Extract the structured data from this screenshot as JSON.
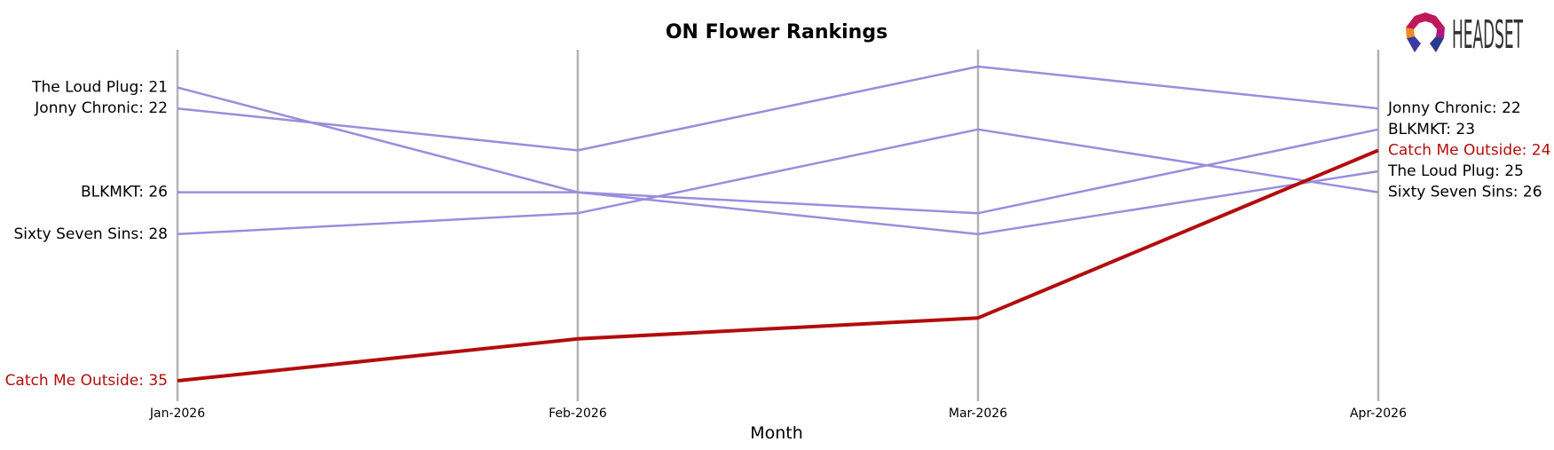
{
  "brand": {
    "name": "HEADSET",
    "logo_icon": "headset-logo-icon"
  },
  "colors": {
    "highlight": "#b30c0c",
    "other": "#9b8ddd",
    "vline": "#b3b3b3"
  },
  "chart_data": {
    "type": "line",
    "title": "ON Flower Rankings",
    "xlabel": "Month",
    "ylabel": "",
    "categories": [
      "Jan-2026",
      "Feb-2026",
      "Mar-2026",
      "Apr-2026"
    ],
    "y_inverted": true,
    "ylim": [
      20,
      35
    ],
    "grid": false,
    "series": [
      {
        "name": "The Loud Plug",
        "values": [
          21,
          26,
          28,
          25
        ],
        "highlight": false,
        "left_label": "The Loud Plug: 21",
        "right_label": "The Loud Plug: 25"
      },
      {
        "name": "Jonny Chronic",
        "values": [
          22,
          24,
          20,
          22
        ],
        "highlight": false,
        "left_label": "Jonny Chronic: 22",
        "right_label": "Jonny Chronic: 22"
      },
      {
        "name": "BLKMKT",
        "values": [
          26,
          26,
          27,
          23
        ],
        "highlight": false,
        "left_label": "BLKMKT: 26",
        "right_label": "BLKMKT: 23"
      },
      {
        "name": "Sixty Seven Sins",
        "values": [
          28,
          27,
          23,
          26
        ],
        "highlight": false,
        "left_label": "Sixty Seven Sins: 28",
        "right_label": "Sixty Seven Sins: 26"
      },
      {
        "name": "Catch Me Outside",
        "values": [
          35,
          33,
          32,
          24
        ],
        "highlight": true,
        "left_label": "Catch Me Outside: 35",
        "right_label": "Catch Me Outside: 24"
      }
    ]
  }
}
